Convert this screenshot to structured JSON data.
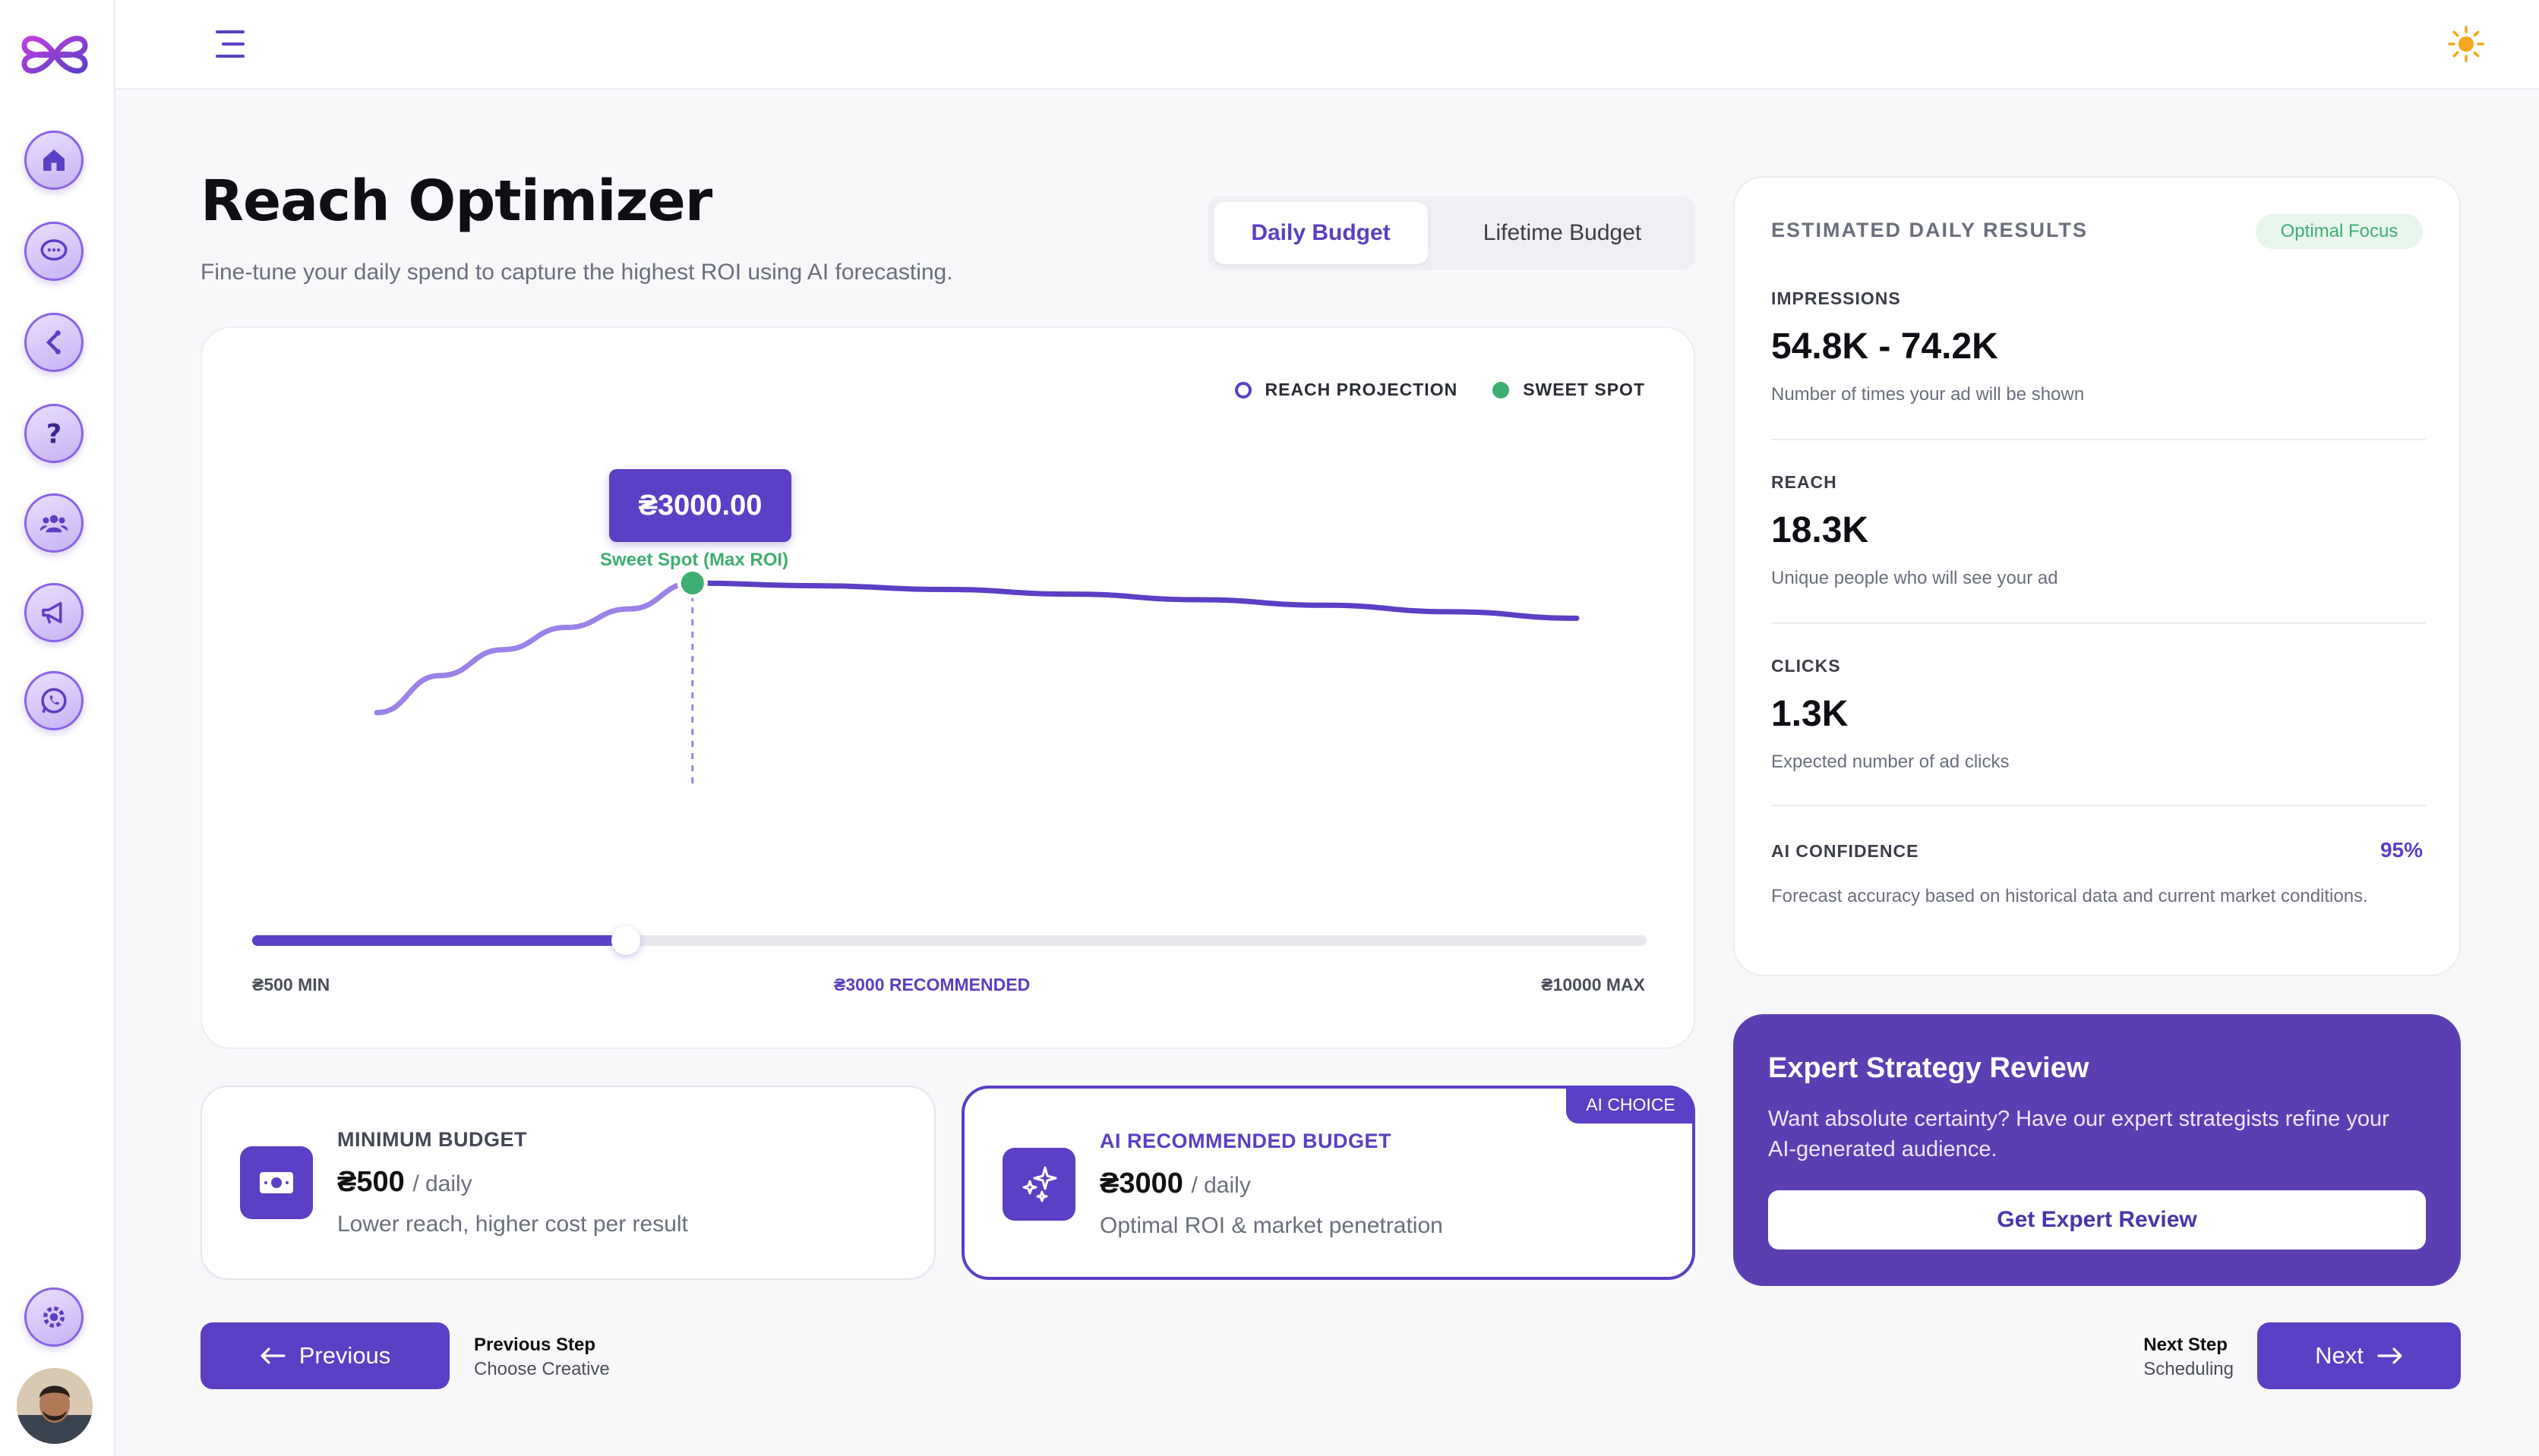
{
  "header": {
    "title": "Reach Optimizer",
    "subtitle": "Fine-tune your daily spend to capture the highest ROI using AI forecasting."
  },
  "tabs": [
    {
      "label": "Daily Budget",
      "active": true
    },
    {
      "label": "Lifetime Budget",
      "active": false
    }
  ],
  "sidebar": {
    "items": [
      {
        "icon": "home-icon"
      },
      {
        "icon": "chat-icon"
      },
      {
        "icon": "share-icon"
      },
      {
        "icon": "help-icon"
      },
      {
        "icon": "users-icon"
      },
      {
        "icon": "megaphone-icon"
      },
      {
        "icon": "whatsapp-icon"
      }
    ],
    "settings_icon": "gear-icon"
  },
  "chart": {
    "legend": {
      "reach": "REACH PROJECTION",
      "sweet": "SWEET SPOT"
    },
    "tooltip_value": "₴3000.00",
    "sweet_spot_label": "Sweet Spot (Max ROI)",
    "slider": {
      "min_label": "₴500 MIN",
      "recommended_label": "₴3000 RECOMMENDED",
      "max_label": "₴10000 MAX",
      "min": 500,
      "max": 10000,
      "value": 3000
    }
  },
  "chart_data": {
    "type": "line",
    "title": "",
    "xlabel": "",
    "ylabel": "",
    "series": [
      {
        "name": "REACH PROJECTION",
        "x": [
          500,
          1000,
          1500,
          2000,
          2500,
          3000,
          4000,
          5000,
          6000,
          7000,
          8000,
          9000,
          10000
        ],
        "y": [
          0.3,
          0.5,
          0.64,
          0.76,
          0.86,
          1.0,
          0.985,
          0.965,
          0.94,
          0.91,
          0.88,
          0.845,
          0.81
        ]
      }
    ],
    "sweet_spot": {
      "x": 3000,
      "label": "Sweet Spot (Max ROI)"
    },
    "xlim": [
      500,
      10000
    ],
    "grid": false,
    "legend_position": "top-right"
  },
  "budgets": {
    "minimum": {
      "title": "MINIMUM BUDGET",
      "price": "₴500",
      "unit": "/ daily",
      "desc": "Lower reach, higher cost per result"
    },
    "recommended": {
      "badge": "AI CHOICE",
      "title": "AI RECOMMENDED BUDGET",
      "price": "₴3000",
      "unit": "/ daily",
      "desc": "Optimal ROI & market penetration"
    }
  },
  "results": {
    "heading": "ESTIMATED DAILY RESULTS",
    "badge": "Optimal Focus",
    "metrics": [
      {
        "label": "IMPRESSIONS",
        "value": "54.8K - 74.2K",
        "desc": "Number of times your ad will be shown"
      },
      {
        "label": "REACH",
        "value": "18.3K",
        "desc": "Unique people who will see your ad"
      },
      {
        "label": "CLICKS",
        "value": "1.3K",
        "desc": "Expected number of ad clicks"
      }
    ],
    "confidence": {
      "label": "AI CONFIDENCE",
      "value": "95%",
      "desc": "Forecast accuracy based on historical data and current market conditions."
    }
  },
  "expert": {
    "title": "Expert Strategy Review",
    "desc": "Want absolute certainty? Have our expert strategists refine your AI-generated audience.",
    "button": "Get Expert Review"
  },
  "navigation": {
    "prev_button": "Previous",
    "prev_step_label": "Previous Step",
    "prev_step_name": "Choose Creative",
    "next_button": "Next",
    "next_step_label": "Next Step",
    "next_step_name": "Scheduling"
  },
  "colors": {
    "accent": "#5b3fc4",
    "sweet_spot": "#3fae72",
    "line_light": "#9b82e8"
  }
}
